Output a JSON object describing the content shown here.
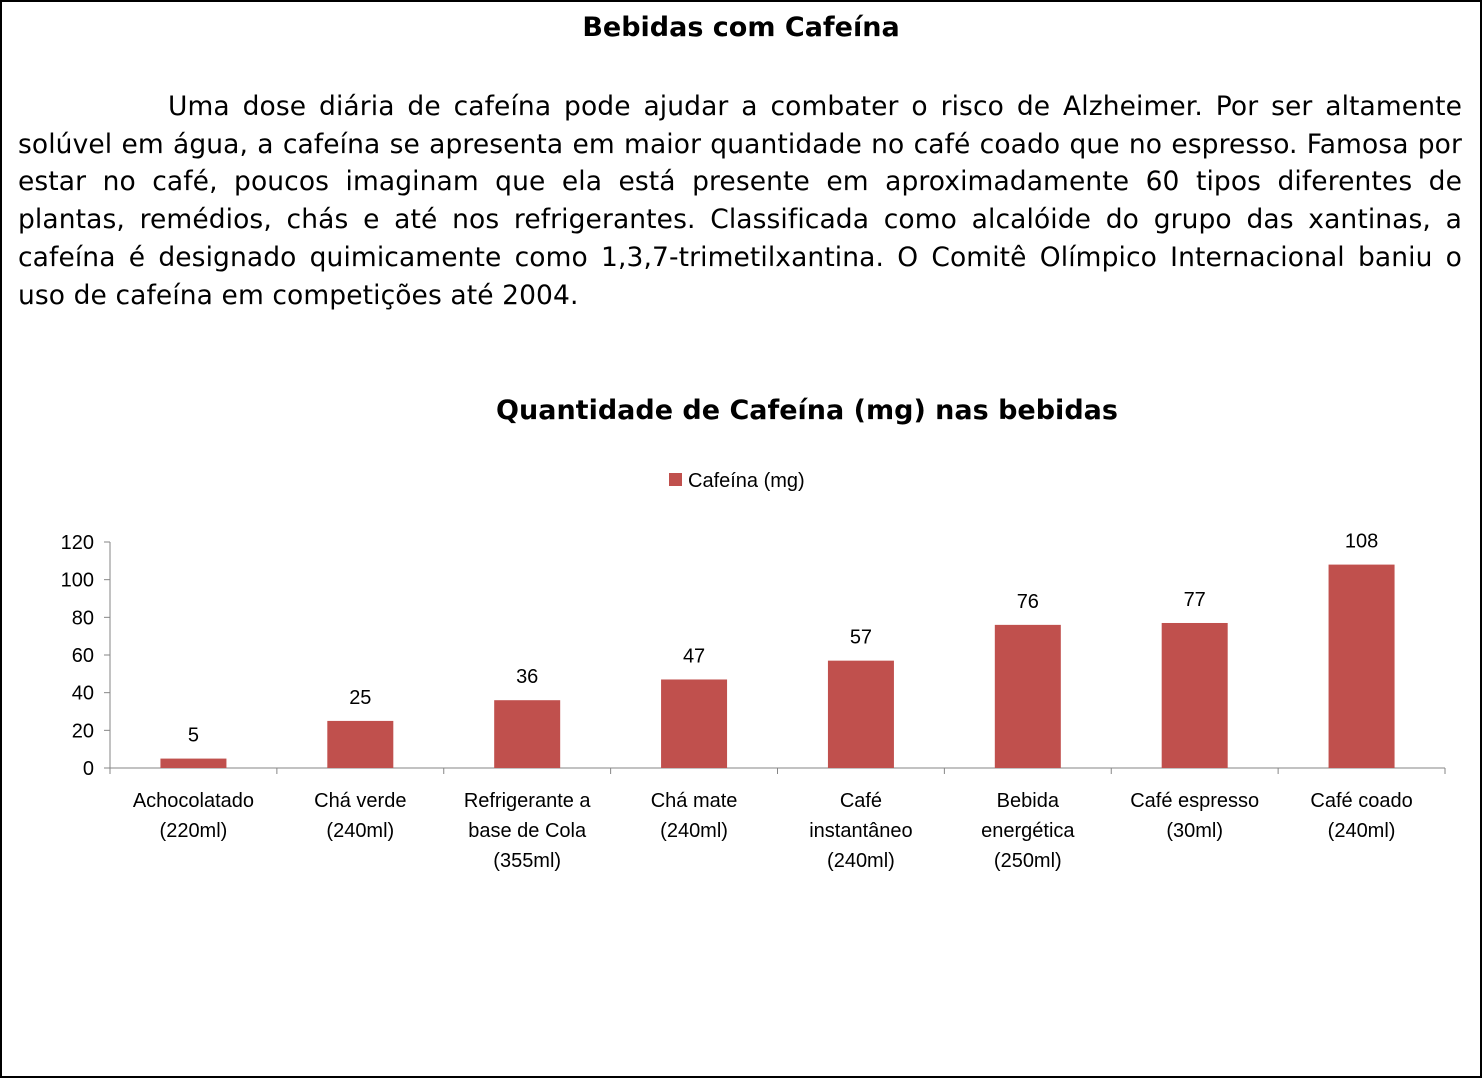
{
  "document": {
    "title": "Bebidas com Cafeína",
    "paragraph": "Uma dose diária de cafeína pode ajudar a combater o risco de Alzheimer. Por ser altamente solúvel em água, a cafeína se apresenta em maior quantidade no café coado que no espresso. Famosa por estar no café, poucos imaginam que ela está presente em aproximadamente 60 tipos diferentes de plantas, remédios, chás e até nos refrigerantes. Classificada como alcalóide do grupo das xantinas, a cafeína é designado quimicamente como 1,3,7-trimetilxantina. O Comitê Olímpico Internacional baniu o uso de cafeína em competições até 2004."
  },
  "chart_data": {
    "type": "bar",
    "title": "Quantidade de Cafeína (mg) nas bebidas",
    "xlabel": "",
    "ylabel": "",
    "categories": [
      [
        "Achocolatado",
        "(220ml)"
      ],
      [
        "Chá verde",
        "(240ml)"
      ],
      [
        "Refrigerante a",
        "base de Cola",
        "(355ml)"
      ],
      [
        "Chá mate",
        "(240ml)"
      ],
      [
        "Café",
        "instantâneo",
        "(240ml)"
      ],
      [
        "Bebida",
        "energética",
        "(250ml)"
      ],
      [
        "Café espresso",
        "(30ml)"
      ],
      [
        "Café coado",
        "(240ml)"
      ]
    ],
    "series": [
      {
        "name": "Cafeína (mg)",
        "values": [
          5,
          25,
          36,
          47,
          57,
          76,
          77,
          108
        ],
        "color": "#c0504d"
      }
    ],
    "ylim": [
      0,
      120
    ],
    "yticks": [
      0,
      20,
      40,
      60,
      80,
      100,
      120
    ],
    "data_labels": true,
    "grid": false,
    "legend_position": "top"
  }
}
